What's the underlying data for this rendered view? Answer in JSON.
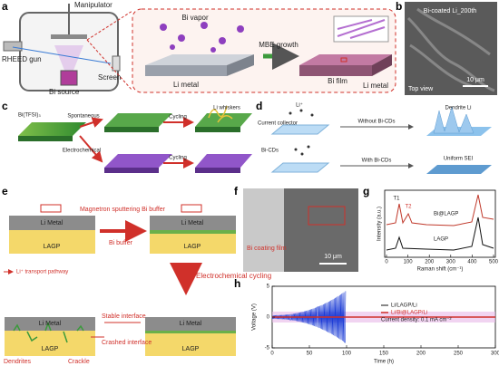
{
  "panels": {
    "a": {
      "label": "a",
      "manipulator": "Manipulator",
      "rheed": "RHEED gun",
      "source": "Bi source",
      "screen": "Screen",
      "vapor": "Bi vapor",
      "growth": "MBE growth",
      "film": "Bi film",
      "substrate_left": "Li metal",
      "substrate_right": "Li metal"
    },
    "b": {
      "label": "b",
      "caption": "Bi-coated Li_200th",
      "view": "Top view",
      "scale": "10 μm"
    },
    "c": {
      "label": "c",
      "salt": "Bi(TFSI)₃",
      "spontaneous": "Spontaneous",
      "electrochemical": "Electrochemical",
      "cycling_top": "Cycling",
      "cycling_bottom": "Cycling",
      "whiskers": "Li whiskers"
    },
    "d": {
      "label": "d",
      "collector": "Current collector",
      "ion": "Li⁺",
      "cds": "Bi-CDs",
      "without": "Without Bi-CDs",
      "with": "With Bi-CDs",
      "dendrite": "Dendrite Li",
      "sei": "Uniform SEI"
    },
    "e": {
      "label": "e",
      "sputter": "Magnetron sputtering Bi buffer",
      "metal_1": "Li Metal",
      "metal_2": "Li Metal",
      "metal_3": "Li Metal",
      "metal_4": "Li Metal",
      "lagp_1": "LAGP",
      "lagp_2": "LAGP",
      "lagp_3": "LAGP",
      "lagp_4": "LAGP",
      "buffer": "Bi buffer",
      "pathway": "Li⁺ transport pathway",
      "cycling": "Electrochemical cycling",
      "stable": "Stable interface",
      "crashed": "Crashed interface",
      "dendrites": "Dendrites",
      "crackle": "Crackle"
    },
    "f": {
      "label": "f",
      "film": "Bi coating film",
      "scale": "10 μm"
    },
    "g": {
      "label": "g",
      "ylabel": "Intensity (a.u.)",
      "xlabel": "Raman shift (cm⁻¹)",
      "xticks": [
        0,
        100,
        200,
        300,
        400,
        500
      ],
      "legend": [
        "Bi@LAGP",
        "LAGP"
      ],
      "peaks": [
        "T1",
        "T2"
      ]
    },
    "h": {
      "label": "h",
      "ylabel": "Voltage (V)",
      "xlabel": "Time (h)",
      "yticks": [
        -5,
        0,
        5
      ],
      "xticks": [
        0,
        50,
        100,
        150,
        200,
        250,
        300
      ],
      "legend": [
        "Li/LAGP/Li",
        "Li/Bi@LAGP/Li"
      ],
      "note": "Current density: 0.1 mA cm⁻²"
    }
  }
}
